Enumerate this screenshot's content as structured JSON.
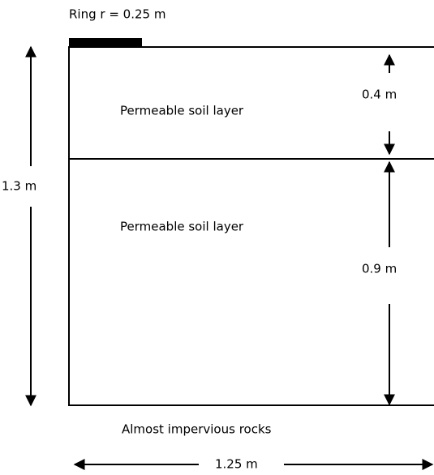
{
  "title": "Ring r = 0.25 m",
  "layers": [
    {
      "label": "Permeable soil layer",
      "thickness": "0.4 m"
    },
    {
      "label": "Permeable soil layer",
      "thickness": "0.9 m"
    }
  ],
  "bottom": "Almost impervious rocks",
  "total_depth": "1.3 m",
  "width": "1.25 m"
}
